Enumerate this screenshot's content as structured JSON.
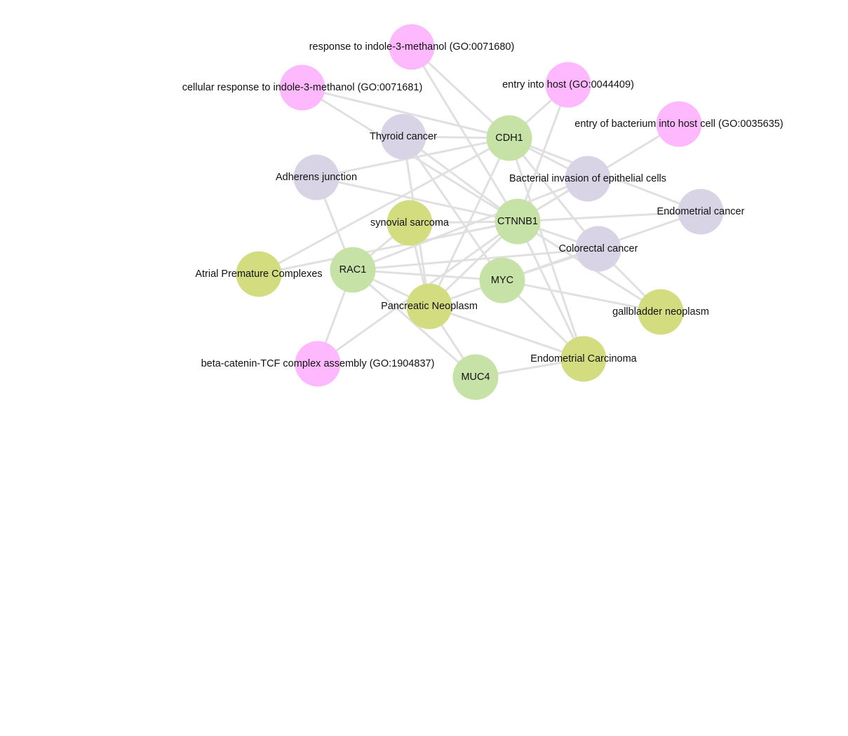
{
  "colors": {
    "gene": "#c7e2a7",
    "disease": "#d3dc7f",
    "pathway": "#d8d4e5",
    "go_term": "#feb8fd",
    "edge": "#e0e0e0",
    "label": "#111111",
    "background": "#ffffff"
  },
  "nodes": [
    {
      "id": "go_indole_response",
      "label": "response to indole-3-methanol (GO:0071680)",
      "kind": "go_term"
    },
    {
      "id": "go_cell_indole_response",
      "label": "cellular response to indole-3-methanol (GO:0071681)",
      "kind": "go_term"
    },
    {
      "id": "go_entry_host",
      "label": "entry into host (GO:0044409)",
      "kind": "go_term"
    },
    {
      "id": "go_entry_bacterium",
      "label": "entry of bacterium into host cell (GO:0035635)",
      "kind": "go_term"
    },
    {
      "id": "go_bcat_tcf",
      "label": "beta-catenin-TCF complex assembly (GO:1904837)",
      "kind": "go_term"
    },
    {
      "id": "thyroid_cancer",
      "label": "Thyroid cancer",
      "kind": "pathway"
    },
    {
      "id": "adherens_junction",
      "label": "Adherens junction",
      "kind": "pathway"
    },
    {
      "id": "bacterial_invasion",
      "label": "Bacterial invasion of epithelial cells",
      "kind": "pathway"
    },
    {
      "id": "endometrial_cancer",
      "label": "Endometrial cancer",
      "kind": "pathway"
    },
    {
      "id": "colorectal_cancer",
      "label": "Colorectal cancer",
      "kind": "pathway"
    },
    {
      "id": "CDH1",
      "label": "CDH1",
      "kind": "gene"
    },
    {
      "id": "CTNNB1",
      "label": "CTNNB1",
      "kind": "gene"
    },
    {
      "id": "RAC1",
      "label": "RAC1",
      "kind": "gene"
    },
    {
      "id": "MYC",
      "label": "MYC",
      "kind": "gene"
    },
    {
      "id": "MUC4",
      "label": "MUC4",
      "kind": "gene"
    },
    {
      "id": "synovial_sarcoma",
      "label": "synovial sarcoma",
      "kind": "disease"
    },
    {
      "id": "atrial_premature",
      "label": "Atrial Premature Complexes",
      "kind": "disease"
    },
    {
      "id": "pancreatic_neoplasm",
      "label": "Pancreatic Neoplasm",
      "kind": "disease"
    },
    {
      "id": "gallbladder_neoplasm",
      "label": "gallbladder neoplasm",
      "kind": "disease"
    },
    {
      "id": "endometrial_carcinoma",
      "label": "Endometrial Carcinoma",
      "kind": "disease"
    }
  ],
  "edges": [
    [
      "go_indole_response",
      "CDH1"
    ],
    [
      "go_indole_response",
      "CTNNB1"
    ],
    [
      "go_cell_indole_response",
      "CDH1"
    ],
    [
      "go_cell_indole_response",
      "CTNNB1"
    ],
    [
      "go_entry_host",
      "CDH1"
    ],
    [
      "go_entry_host",
      "CTNNB1"
    ],
    [
      "go_entry_bacterium",
      "CTNNB1"
    ],
    [
      "go_bcat_tcf",
      "CTNNB1"
    ],
    [
      "go_bcat_tcf",
      "RAC1"
    ],
    [
      "thyroid_cancer",
      "CDH1"
    ],
    [
      "thyroid_cancer",
      "CTNNB1"
    ],
    [
      "thyroid_cancer",
      "MYC"
    ],
    [
      "adherens_junction",
      "CDH1"
    ],
    [
      "adherens_junction",
      "CTNNB1"
    ],
    [
      "adherens_junction",
      "RAC1"
    ],
    [
      "bacterial_invasion",
      "CDH1"
    ],
    [
      "bacterial_invasion",
      "CTNNB1"
    ],
    [
      "bacterial_invasion",
      "RAC1"
    ],
    [
      "endometrial_cancer",
      "CDH1"
    ],
    [
      "endometrial_cancer",
      "CTNNB1"
    ],
    [
      "endometrial_cancer",
      "MYC"
    ],
    [
      "colorectal_cancer",
      "CTNNB1"
    ],
    [
      "colorectal_cancer",
      "RAC1"
    ],
    [
      "colorectal_cancer",
      "MYC"
    ],
    [
      "colorectal_cancer",
      "CDH1"
    ],
    [
      "synovial_sarcoma",
      "CTNNB1"
    ],
    [
      "synovial_sarcoma",
      "RAC1"
    ],
    [
      "synovial_sarcoma",
      "pancreatic_neoplasm"
    ],
    [
      "atrial_premature",
      "CDH1"
    ],
    [
      "atrial_premature",
      "CTNNB1"
    ],
    [
      "pancreatic_neoplasm",
      "CDH1"
    ],
    [
      "pancreatic_neoplasm",
      "CTNNB1"
    ],
    [
      "pancreatic_neoplasm",
      "MYC"
    ],
    [
      "pancreatic_neoplasm",
      "MUC4"
    ],
    [
      "pancreatic_neoplasm",
      "RAC1"
    ],
    [
      "pancreatic_neoplasm",
      "thyroid_cancer"
    ],
    [
      "gallbladder_neoplasm",
      "CTNNB1"
    ],
    [
      "gallbladder_neoplasm",
      "MYC"
    ],
    [
      "gallbladder_neoplasm",
      "colorectal_cancer"
    ],
    [
      "endometrial_carcinoma",
      "CDH1"
    ],
    [
      "endometrial_carcinoma",
      "CTNNB1"
    ],
    [
      "endometrial_carcinoma",
      "MYC"
    ],
    [
      "endometrial_carcinoma",
      "MUC4"
    ],
    [
      "endometrial_carcinoma",
      "pancreatic_neoplasm"
    ],
    [
      "MUC4",
      "RAC1"
    ],
    [
      "RAC1",
      "MYC"
    ]
  ]
}
